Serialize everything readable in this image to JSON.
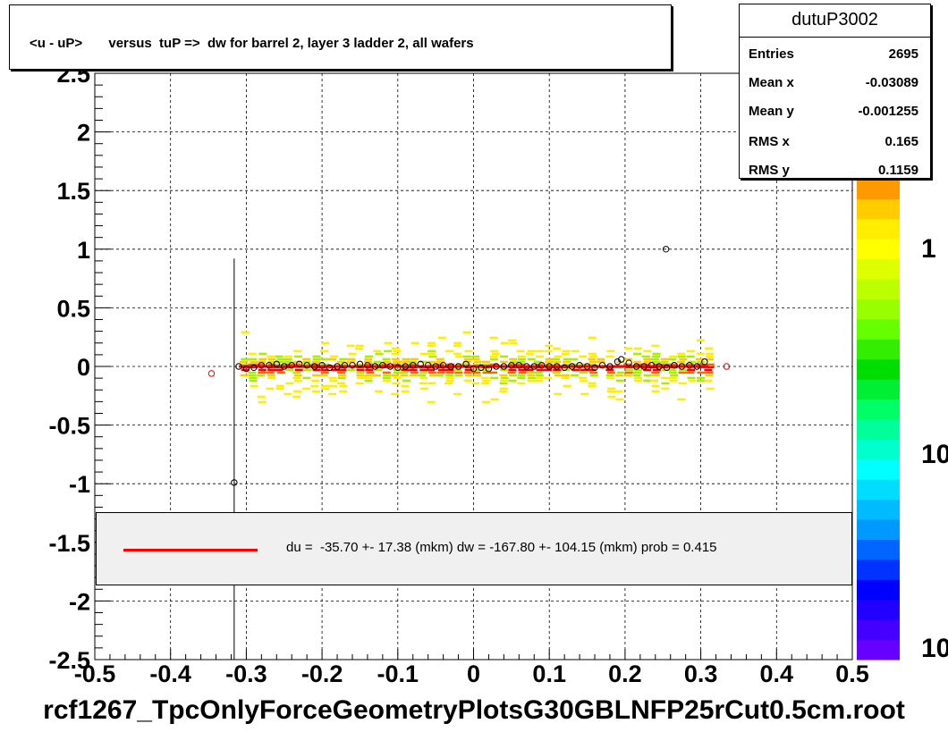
{
  "title": "<u - uP>       versus  tuP =>  dw for barrel 2, layer 3 ladder 2, all wafers",
  "footer": "rcf1267_TpcOnlyForceGeometryPlotsG30GBLNFP25rCut0.5cm.root",
  "stats": {
    "name": "dutuP3002",
    "rows": [
      {
        "label": "Entries",
        "value": "2695"
      },
      {
        "label": "Mean x",
        "value": "-0.03089"
      },
      {
        "label": "Mean y",
        "value": "-0.001255"
      },
      {
        "label": "RMS x",
        "value": "0.165"
      },
      {
        "label": "RMS y",
        "value": "0.1159"
      }
    ]
  },
  "legend": {
    "text": "du =  -35.70 +- 17.38 (mkm) dw = -167.80 +- 104.15 (mkm) prob = 0.415",
    "line_color": "#ff0000"
  },
  "colorbar": {
    "tick_labels": [
      "1",
      "10",
      "10"
    ]
  },
  "chart_data": {
    "type": "heatmap",
    "title": "<u - uP>       versus  tuP =>  dw for barrel 2, layer 3 ladder 2, all wafers",
    "xlim": [
      -0.5,
      0.5
    ],
    "ylim": [
      -2.5,
      2.5
    ],
    "x_ticks": [
      "-0.5",
      "-0.4",
      "-0.3",
      "-0.2",
      "-0.1",
      "0",
      "0.1",
      "0.2",
      "0.3",
      "0.4",
      "0.5"
    ],
    "y_ticks": [
      "-2.5",
      "-2",
      "-1.5",
      "-1",
      "-0.5",
      "0",
      "0.5",
      "1",
      "1.5",
      "2",
      "2.5"
    ],
    "grid": true,
    "band": {
      "x_range": [
        -0.31,
        0.31
      ],
      "y_center": 0.0,
      "y_half_width": 0.3
    },
    "profile_points": [
      {
        "x": -0.31,
        "y": 0.0
      },
      {
        "x": -0.3,
        "y": -0.02
      },
      {
        "x": -0.29,
        "y": -0.01
      },
      {
        "x": -0.28,
        "y": 0.01
      },
      {
        "x": -0.27,
        "y": 0.01
      },
      {
        "x": -0.26,
        "y": 0.02
      },
      {
        "x": -0.25,
        "y": 0.0
      },
      {
        "x": -0.24,
        "y": 0.01
      },
      {
        "x": -0.23,
        "y": 0.02
      },
      {
        "x": -0.22,
        "y": 0.01
      },
      {
        "x": -0.21,
        "y": 0.0
      },
      {
        "x": -0.2,
        "y": 0.01
      },
      {
        "x": -0.19,
        "y": -0.01
      },
      {
        "x": -0.18,
        "y": 0.0
      },
      {
        "x": -0.17,
        "y": 0.01
      },
      {
        "x": -0.16,
        "y": 0.01
      },
      {
        "x": -0.15,
        "y": 0.02
      },
      {
        "x": -0.14,
        "y": 0.01
      },
      {
        "x": -0.13,
        "y": 0.0
      },
      {
        "x": -0.12,
        "y": 0.01
      },
      {
        "x": -0.11,
        "y": 0.0
      },
      {
        "x": -0.1,
        "y": -0.01
      },
      {
        "x": -0.09,
        "y": 0.0
      },
      {
        "x": -0.08,
        "y": 0.01
      },
      {
        "x": -0.07,
        "y": 0.02
      },
      {
        "x": -0.06,
        "y": 0.01
      },
      {
        "x": -0.05,
        "y": 0.0
      },
      {
        "x": -0.04,
        "y": 0.01
      },
      {
        "x": -0.03,
        "y": 0.0
      },
      {
        "x": -0.02,
        "y": 0.0
      },
      {
        "x": -0.01,
        "y": 0.02
      },
      {
        "x": 0.0,
        "y": -0.02
      },
      {
        "x": 0.01,
        "y": -0.01
      },
      {
        "x": 0.02,
        "y": -0.02
      },
      {
        "x": 0.03,
        "y": 0.0
      },
      {
        "x": 0.04,
        "y": 0.0
      },
      {
        "x": 0.05,
        "y": 0.01
      },
      {
        "x": 0.06,
        "y": 0.01
      },
      {
        "x": 0.07,
        "y": 0.0
      },
      {
        "x": 0.08,
        "y": 0.0
      },
      {
        "x": 0.09,
        "y": 0.01
      },
      {
        "x": 0.1,
        "y": 0.0
      },
      {
        "x": 0.11,
        "y": 0.0
      },
      {
        "x": 0.12,
        "y": -0.01
      },
      {
        "x": 0.13,
        "y": 0.0
      },
      {
        "x": 0.14,
        "y": 0.01
      },
      {
        "x": 0.15,
        "y": 0.0
      },
      {
        "x": 0.16,
        "y": -0.01
      },
      {
        "x": 0.17,
        "y": 0.01
      },
      {
        "x": 0.18,
        "y": 0.0
      },
      {
        "x": 0.19,
        "y": 0.04
      },
      {
        "x": 0.195,
        "y": 0.06
      },
      {
        "x": 0.205,
        "y": 0.03
      },
      {
        "x": 0.215,
        "y": 0.0
      },
      {
        "x": 0.225,
        "y": 0.0
      },
      {
        "x": 0.235,
        "y": 0.01
      },
      {
        "x": 0.245,
        "y": 0.0
      },
      {
        "x": 0.255,
        "y": -0.01
      },
      {
        "x": 0.265,
        "y": 0.01
      },
      {
        "x": 0.275,
        "y": 0.0
      },
      {
        "x": 0.285,
        "y": 0.01
      },
      {
        "x": 0.295,
        "y": 0.0
      },
      {
        "x": 0.305,
        "y": 0.04
      }
    ],
    "outliers": [
      {
        "x": -0.346,
        "y": -0.06,
        "color": "#ff0000"
      },
      {
        "x": 0.334,
        "y": 0.0,
        "color": "#ff0000"
      },
      {
        "x": 0.254,
        "y": 1.0,
        "color": "#000000"
      },
      {
        "x": -0.316,
        "y": -0.99,
        "color": "#000000"
      }
    ],
    "error_bar": {
      "x": -0.316,
      "y_low": -2.5,
      "y_high": 0.92
    },
    "fit_line": {
      "x_range": [
        -0.31,
        0.31
      ],
      "y": 0.0,
      "color": "#ff0000"
    }
  }
}
